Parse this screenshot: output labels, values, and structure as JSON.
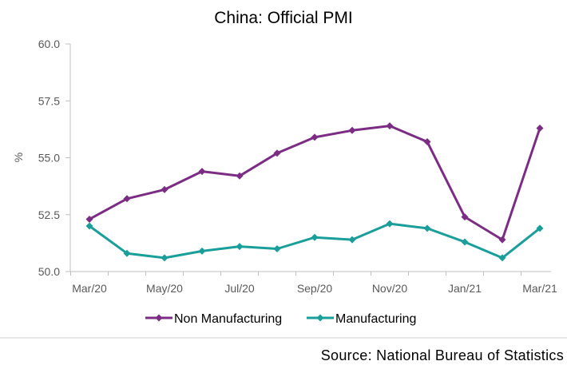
{
  "chart_data": {
    "type": "line",
    "title": "China: Official PMI",
    "xlabel": "",
    "ylabel": "%",
    "ylim": [
      50.0,
      60.0
    ],
    "yticks": [
      "50.0",
      "52.5",
      "55.0",
      "57.5",
      "60.0"
    ],
    "ytick_values": [
      50.0,
      52.5,
      55.0,
      57.5,
      60.0
    ],
    "categories": [
      "Mar/20",
      "Apr/20",
      "May/20",
      "Jun/20",
      "Jul/20",
      "Aug/20",
      "Sep/20",
      "Oct/20",
      "Nov/20",
      "Dec/20",
      "Jan/21",
      "Feb/21",
      "Mar/21"
    ],
    "xtick_labels": [
      "Mar/20",
      "May/20",
      "Jul/20",
      "Sep/20",
      "Nov/20",
      "Jan/21",
      "Mar/21"
    ],
    "xtick_indices": [
      0,
      2,
      4,
      6,
      8,
      10,
      12
    ],
    "series": [
      {
        "name": "Non Manufacturing",
        "color": "#7B2C83",
        "values": [
          52.3,
          53.2,
          53.6,
          54.4,
          54.2,
          55.2,
          55.9,
          56.2,
          56.4,
          55.7,
          52.4,
          51.4,
          56.3
        ]
      },
      {
        "name": "Manufacturing",
        "color": "#1A9E9A",
        "values": [
          52.0,
          50.8,
          50.6,
          50.9,
          51.1,
          51.0,
          51.5,
          51.4,
          52.1,
          51.9,
          51.3,
          50.6,
          51.9
        ]
      }
    ],
    "legend_position": "bottom",
    "grid": false
  },
  "source": "Source: National Bureau of Statistics"
}
